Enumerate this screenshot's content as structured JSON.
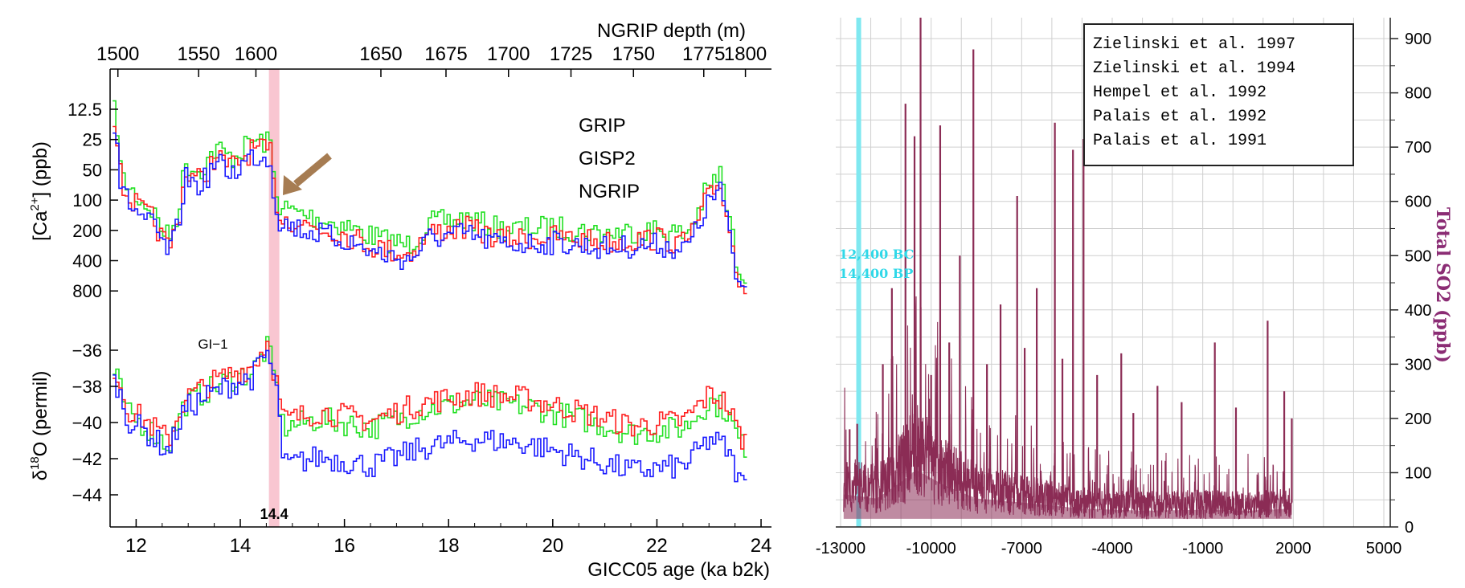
{
  "chart_data": [
    {
      "type": "line",
      "xlabel": "GICC05 age (ka b2k)",
      "x_ticks": [
        12,
        14,
        16,
        18,
        20,
        22,
        24
      ],
      "xlim": [
        11.5,
        24.2
      ],
      "top_axis": {
        "label": "NGRIP depth (m)",
        "ticks": [
          {
            "label": "1500",
            "age": 11.65
          },
          {
            "label": "1550",
            "age": 13.2
          },
          {
            "label": "1600",
            "age": 14.3
          },
          {
            "label": "1650",
            "age": 16.7
          },
          {
            "label": "1675",
            "age": 17.95
          },
          {
            "label": "1700",
            "age": 19.15
          },
          {
            "label": "1725",
            "age": 20.35
          },
          {
            "label": "1750",
            "age": 21.55
          },
          {
            "label": "1775",
            "age": 22.9
          },
          {
            "label": "1800",
            "age": 23.7
          }
        ]
      },
      "highlight": {
        "age": 14.65,
        "label": "14.4",
        "color": "#f9c6d1",
        "label_color": "#8b0000"
      },
      "legend": [
        {
          "name": "GRIP",
          "color": "#ff2020"
        },
        {
          "name": "GISP2",
          "color": "#22e022"
        },
        {
          "name": "NGRIP",
          "color": "#1a1aff"
        }
      ],
      "arrow_color": "#a67c52",
      "panels": [
        {
          "id": "calcium",
          "ylabel_pre": "[Ca",
          "ylabel_sup": "2+",
          "ylabel_post": "] (ppb)",
          "scale": "log-reversed",
          "ylim": [
            10,
            1000
          ],
          "y_ticks": [
            "12.5",
            "25",
            "50",
            "100",
            "200",
            "400",
            "800"
          ],
          "y_tick_values": [
            12.5,
            25,
            50,
            100,
            200,
            400,
            800
          ],
          "keypoints": [
            {
              "x": 11.6,
              "y": 16
            },
            {
              "x": 11.7,
              "y": 70
            },
            {
              "x": 12.0,
              "y": 110
            },
            {
              "x": 12.3,
              "y": 150
            },
            {
              "x": 12.6,
              "y": 280
            },
            {
              "x": 12.75,
              "y": 170
            },
            {
              "x": 12.9,
              "y": 50
            },
            {
              "x": 13.2,
              "y": 60
            },
            {
              "x": 13.5,
              "y": 35
            },
            {
              "x": 13.8,
              "y": 45
            },
            {
              "x": 14.2,
              "y": 30
            },
            {
              "x": 14.55,
              "y": 32
            },
            {
              "x": 14.65,
              "y": 90
            },
            {
              "x": 14.75,
              "y": 140
            },
            {
              "x": 15.3,
              "y": 170
            },
            {
              "x": 16.0,
              "y": 210
            },
            {
              "x": 16.6,
              "y": 280
            },
            {
              "x": 17.2,
              "y": 330
            },
            {
              "x": 17.6,
              "y": 200
            },
            {
              "x": 18.3,
              "y": 180
            },
            {
              "x": 19.0,
              "y": 230
            },
            {
              "x": 20.0,
              "y": 220
            },
            {
              "x": 21.0,
              "y": 250
            },
            {
              "x": 22.0,
              "y": 230
            },
            {
              "x": 22.5,
              "y": 260
            },
            {
              "x": 22.9,
              "y": 100
            },
            {
              "x": 23.2,
              "y": 60
            },
            {
              "x": 23.4,
              "y": 200
            },
            {
              "x": 23.5,
              "y": 500
            },
            {
              "x": 23.7,
              "y": 650
            }
          ],
          "offsets": {
            "GRIP": 1.05,
            "GISP2": 0.85,
            "NGRIP": 1.2
          }
        },
        {
          "id": "oxygen",
          "ylabel_pre": "δ",
          "ylabel_sup": "18",
          "ylabel_post": "O (permil)",
          "scale": "linear",
          "ylim": [
            -45,
            -34.2
          ],
          "y_ticks": [
            "−36",
            "−38",
            "−40",
            "−42",
            "−44"
          ],
          "y_tick_values": [
            -36,
            -38,
            -40,
            -42,
            -44
          ],
          "annotation": {
            "text": "GI−1",
            "x": 13.65,
            "y": -35.9
          },
          "keypoints": [
            {
              "x": 11.6,
              "y": -37.5
            },
            {
              "x": 11.8,
              "y": -39.5
            },
            {
              "x": 12.2,
              "y": -40.3
            },
            {
              "x": 12.6,
              "y": -41.3
            },
            {
              "x": 12.9,
              "y": -39.0
            },
            {
              "x": 13.3,
              "y": -38.3
            },
            {
              "x": 13.8,
              "y": -37.6
            },
            {
              "x": 14.2,
              "y": -37.2
            },
            {
              "x": 14.5,
              "y": -35.8
            },
            {
              "x": 14.7,
              "y": -38.5
            },
            {
              "x": 14.8,
              "y": -40.5
            },
            {
              "x": 15.5,
              "y": -40.0
            },
            {
              "x": 16.5,
              "y": -40.5
            },
            {
              "x": 17.5,
              "y": -39.5
            },
            {
              "x": 18.5,
              "y": -39.0
            },
            {
              "x": 19.5,
              "y": -39.3
            },
            {
              "x": 20.5,
              "y": -40.0
            },
            {
              "x": 21.5,
              "y": -40.8
            },
            {
              "x": 22.5,
              "y": -40.5
            },
            {
              "x": 23.0,
              "y": -39.0
            },
            {
              "x": 23.3,
              "y": -39.5
            },
            {
              "x": 23.6,
              "y": -41.5
            }
          ],
          "offsets": {
            "GRIP": 0.6,
            "GISP2": 0.2,
            "NGRIP": -1.9
          }
        }
      ]
    },
    {
      "type": "line",
      "ylabel": "Total SO2 (ppb)",
      "x_ticks": [
        "-13000",
        "-10000",
        "-7000",
        "-4000",
        "-1000",
        "2000",
        "5000"
      ],
      "x_tick_values": [
        -13000,
        -10000,
        -7000,
        -4000,
        -1000,
        2000,
        5000
      ],
      "xlim": [
        -13500,
        5300
      ],
      "ylim": [
        0,
        950
      ],
      "y_ticks": [
        "0",
        "100",
        "200",
        "300",
        "400",
        "500",
        "600",
        "700",
        "800",
        "900"
      ],
      "y_tick_values": [
        0,
        100,
        200,
        300,
        400,
        500,
        600,
        700,
        800,
        900
      ],
      "grid": true,
      "series_color": "#8b2c55",
      "marker": {
        "x": -12400,
        "color": "#7fe8f0",
        "label_color": "#30d8e8",
        "labels": [
          "12,400 BC",
          "14,400 BP"
        ]
      },
      "legend_box": [
        "Zielinski et al. 1997",
        "Zielinski et al. 1994",
        "Hempel et al. 1992",
        "Palais et al. 1992",
        "Palais et al. 1991"
      ],
      "baseline": [
        {
          "x": -12900,
          "y": 80
        },
        {
          "x": -11800,
          "y": 70
        },
        {
          "x": -11000,
          "y": 110
        },
        {
          "x": -10500,
          "y": 140
        },
        {
          "x": -9500,
          "y": 100
        },
        {
          "x": -8500,
          "y": 70
        },
        {
          "x": -7000,
          "y": 60
        },
        {
          "x": -5000,
          "y": 45
        },
        {
          "x": -3000,
          "y": 40
        },
        {
          "x": -1000,
          "y": 42
        },
        {
          "x": 500,
          "y": 40
        },
        {
          "x": 1950,
          "y": 45
        }
      ],
      "spikes": [
        {
          "x": -12700,
          "y": 180
        },
        {
          "x": -12450,
          "y": 190
        },
        {
          "x": -11600,
          "y": 300
        },
        {
          "x": -11300,
          "y": 440
        },
        {
          "x": -10850,
          "y": 780
        },
        {
          "x": -10550,
          "y": 720
        },
        {
          "x": -10350,
          "y": 950
        },
        {
          "x": -10000,
          "y": 280
        },
        {
          "x": -9700,
          "y": 740
        },
        {
          "x": -9400,
          "y": 340
        },
        {
          "x": -9050,
          "y": 500
        },
        {
          "x": -8600,
          "y": 880
        },
        {
          "x": -8150,
          "y": 300
        },
        {
          "x": -7700,
          "y": 410
        },
        {
          "x": -7150,
          "y": 610
        },
        {
          "x": -6900,
          "y": 330
        },
        {
          "x": -6500,
          "y": 440
        },
        {
          "x": -5900,
          "y": 745
        },
        {
          "x": -5650,
          "y": 310
        },
        {
          "x": -5300,
          "y": 695
        },
        {
          "x": -4950,
          "y": 715
        },
        {
          "x": -4500,
          "y": 280
        },
        {
          "x": -3700,
          "y": 320
        },
        {
          "x": -3300,
          "y": 210
        },
        {
          "x": -2500,
          "y": 260
        },
        {
          "x": -1700,
          "y": 230
        },
        {
          "x": -600,
          "y": 340
        },
        {
          "x": 100,
          "y": 220
        },
        {
          "x": 1150,
          "y": 380
        },
        {
          "x": 1700,
          "y": 250
        },
        {
          "x": 1950,
          "y": 200
        }
      ]
    }
  ]
}
